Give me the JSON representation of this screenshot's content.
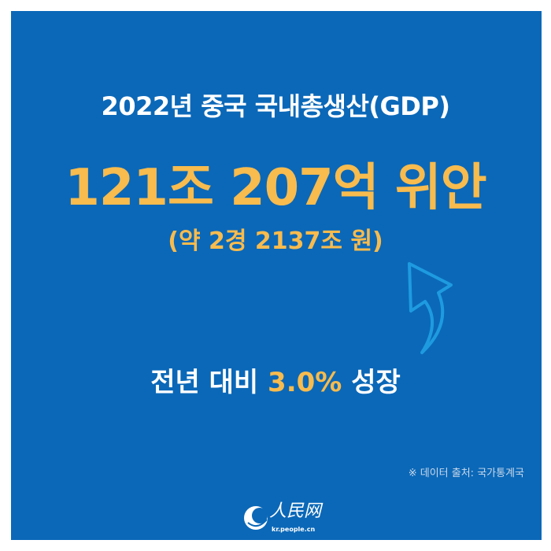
{
  "title": "2022년 중국 국내총생산(GDP)",
  "headline_value": "121조 207억 위안",
  "converted_value": "(약 2경 2137조 원)",
  "growth": {
    "prefix": "전년 대비",
    "rate": "3.0%",
    "suffix": "성장"
  },
  "source": "※ 데이터 출처: 국가통계국",
  "logo": {
    "name": "人民网",
    "url": "kr.people.cn"
  },
  "icons": {
    "arrow": "curved-up-arrow-icon"
  },
  "colors": {
    "background": "#0b68b8",
    "accent": "#f8bb4d",
    "arrow": "#1e9be0"
  }
}
